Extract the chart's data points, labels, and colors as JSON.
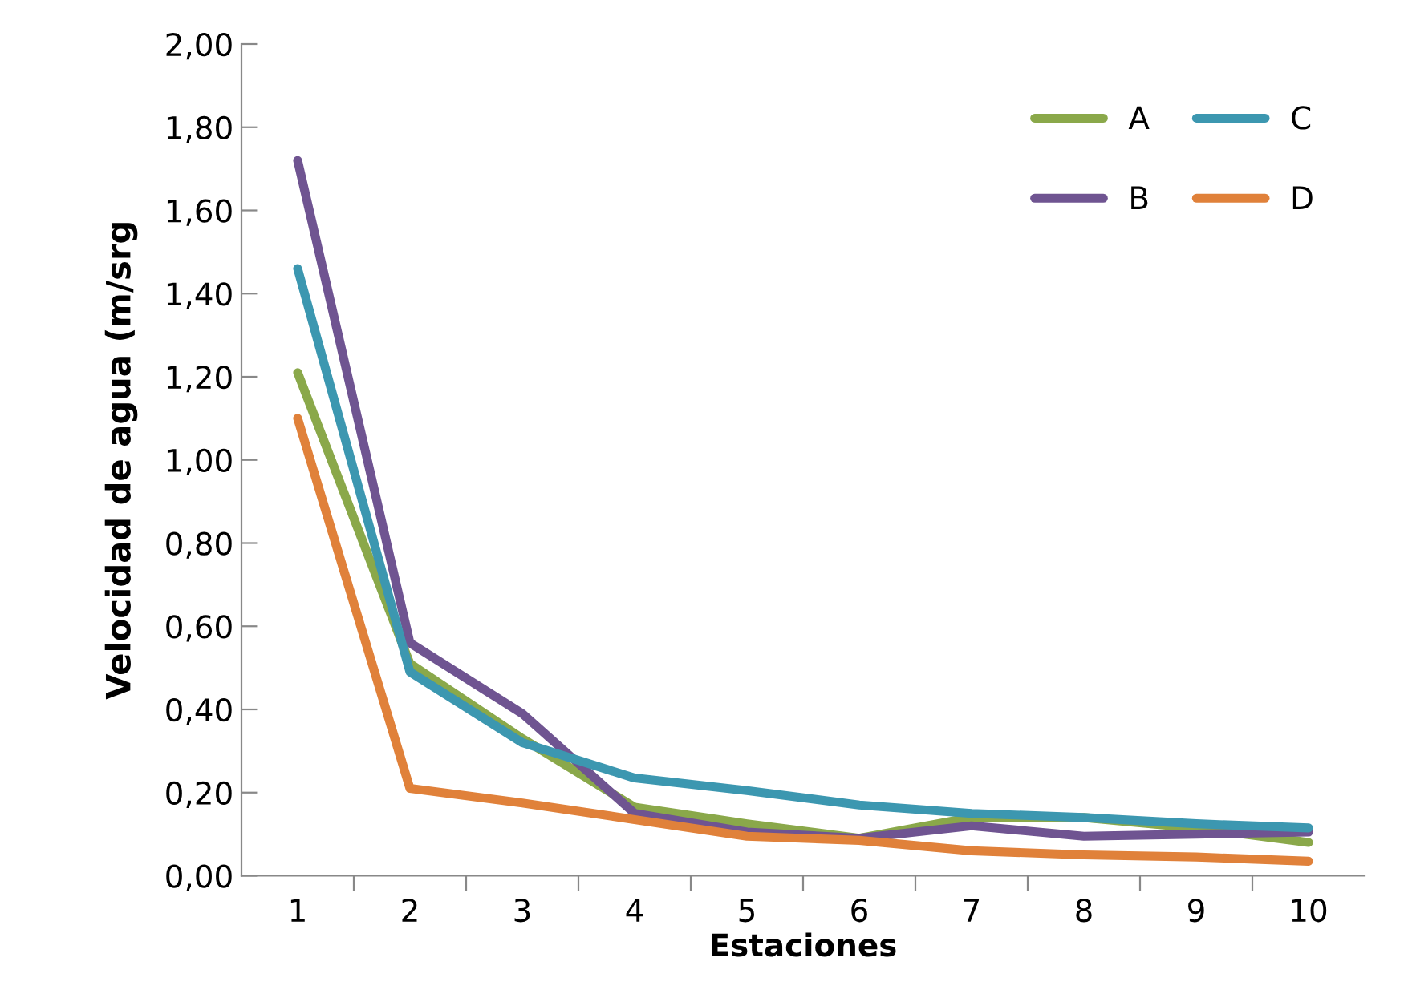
{
  "chart_data": {
    "type": "line",
    "xlabel": "Estaciones",
    "ylabel": "Velocidad de agua (m/srg",
    "categories": [
      "1",
      "2",
      "3",
      "4",
      "5",
      "6",
      "7",
      "8",
      "9",
      "10"
    ],
    "series": [
      {
        "name": "A",
        "color": "#8aa84a",
        "values": [
          1.21,
          0.51,
          0.33,
          0.165,
          0.125,
          0.09,
          0.14,
          0.14,
          0.115,
          0.08
        ]
      },
      {
        "name": "B",
        "color": "#6f5491",
        "values": [
          1.72,
          0.56,
          0.39,
          0.15,
          0.105,
          0.09,
          0.12,
          0.095,
          0.1,
          0.105
        ]
      },
      {
        "name": "C",
        "color": "#3c97b0",
        "values": [
          1.46,
          0.49,
          0.32,
          0.235,
          0.205,
          0.17,
          0.15,
          0.14,
          0.125,
          0.115
        ]
      },
      {
        "name": "D",
        "color": "#e0813a",
        "values": [
          1.1,
          0.21,
          0.175,
          0.135,
          0.095,
          0.085,
          0.06,
          0.05,
          0.045,
          0.035
        ]
      }
    ],
    "ylim": [
      0,
      2
    ],
    "yticks": [
      {
        "value": 0,
        "label": "0,00"
      },
      {
        "value": 0.2,
        "label": "0,20"
      },
      {
        "value": 0.4,
        "label": "0,40"
      },
      {
        "value": 0.6,
        "label": "0,60"
      },
      {
        "value": 0.8,
        "label": "0,80"
      },
      {
        "value": 1.0,
        "label": "1,00"
      },
      {
        "value": 1.2,
        "label": "1,20"
      },
      {
        "value": 1.4,
        "label": "1,40"
      },
      {
        "value": 1.6,
        "label": "1,60"
      },
      {
        "value": 1.8,
        "label": "1,80"
      },
      {
        "value": 2.0,
        "label": "2,00"
      }
    ],
    "grid": false,
    "legend": "top right",
    "marker": "none",
    "line_style": "solid"
  }
}
